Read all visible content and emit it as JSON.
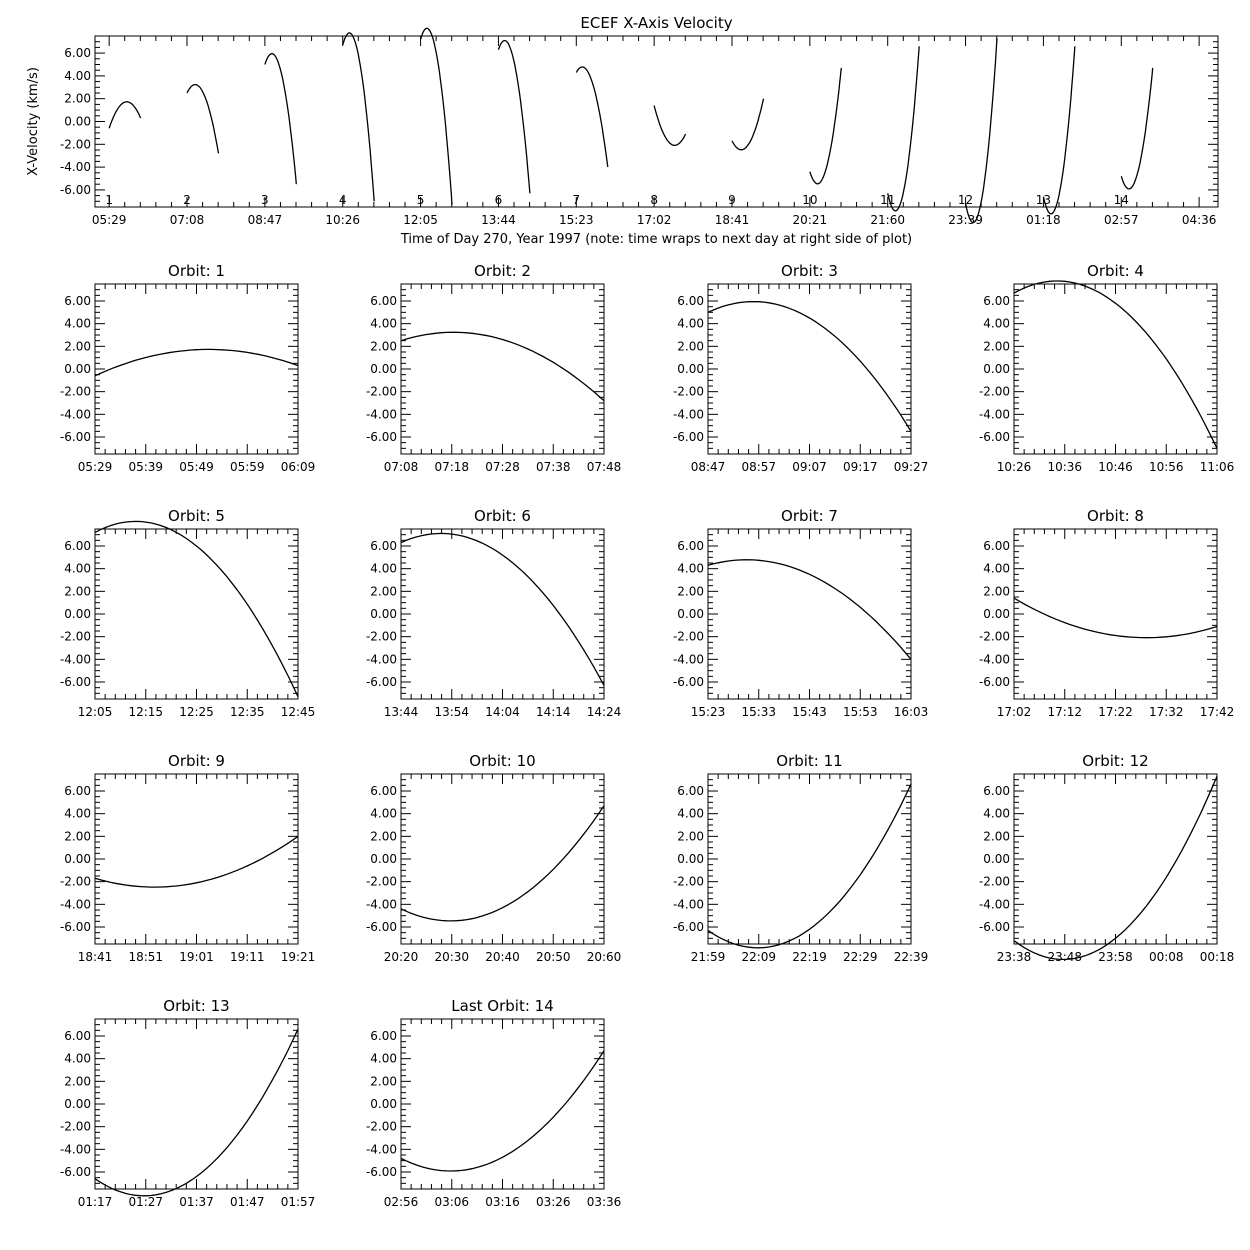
{
  "chart_data": [
    {
      "type": "line",
      "title": "ECEF X-Axis Velocity",
      "xlabel": "Time of Day 270, Year 1997 (note: time wraps to next day at right side of plot)",
      "ylabel": "X-Velocity (km/s)",
      "x_tick_labels": [
        "05:29",
        "07:08",
        "08:47",
        "10:26",
        "12:05",
        "13:44",
        "15:23",
        "17:02",
        "18:41",
        "20:21",
        "21:60",
        "23:39",
        "01:18",
        "02:57",
        "04:36"
      ],
      "y_tick_labels": [
        "6.00",
        "4.00",
        "2.00",
        "0.00",
        "-2.00",
        "-4.00",
        "-6.00"
      ],
      "ylim": [
        -7.5,
        7.5
      ],
      "x_unit": "hours since 05:29",
      "xlim": [
        -0.3,
        23.5
      ],
      "orbit_labels": [
        "1",
        "2",
        "3",
        "4",
        "5",
        "6",
        "7",
        "8",
        "9",
        "10",
        "11",
        "12",
        "13",
        "14"
      ],
      "series": [
        {
          "x": [
            0.0,
            0.667
          ],
          "v": [
            -0.6,
            1.7,
            0.3
          ]
        },
        {
          "x": [
            1.65,
            2.317
          ],
          "v": [
            2.5,
            2.6,
            -2.8
          ]
        },
        {
          "x": [
            3.3,
            3.967
          ],
          "v": [
            5.0,
            4.5,
            -5.5
          ]
        },
        {
          "x": [
            4.95,
            5.617
          ],
          "v": [
            6.7,
            5.8,
            -7.0
          ]
        },
        {
          "x": [
            6.6,
            7.267
          ],
          "v": [
            7.2,
            6.0,
            -7.3
          ]
        },
        {
          "x": [
            8.25,
            8.917
          ],
          "v": [
            6.3,
            5.2,
            -6.3
          ]
        },
        {
          "x": [
            9.9,
            10.567
          ],
          "v": [
            4.3,
            3.5,
            -4.0
          ]
        },
        {
          "x": [
            11.55,
            12.217
          ],
          "v": [
            1.4,
            -1.9,
            -1.1
          ]
        },
        {
          "x": [
            13.2,
            13.867
          ],
          "v": [
            -1.7,
            -2.1,
            2.0
          ]
        },
        {
          "x": [
            14.85,
            15.517
          ],
          "v": [
            -4.4,
            -4.3,
            4.7
          ]
        },
        {
          "x": [
            16.5,
            17.167
          ],
          "v": [
            -6.3,
            -6.2,
            6.6
          ]
        },
        {
          "x": [
            18.15,
            18.817
          ],
          "v": [
            -7.2,
            -7.0,
            7.3
          ]
        },
        {
          "x": [
            19.8,
            20.467
          ],
          "v": [
            -6.6,
            -6.4,
            6.6
          ]
        },
        {
          "x": [
            21.45,
            22.117
          ],
          "v": [
            -4.8,
            -4.7,
            4.7
          ]
        }
      ]
    },
    {
      "type": "line",
      "title": "Orbit: 1",
      "x_tick_labels": [
        "05:29",
        "05:39",
        "05:49",
        "05:59",
        "06:09"
      ],
      "y_tick_labels": [
        "6.00",
        "4.00",
        "2.00",
        "0.00",
        "-2.00",
        "-4.00",
        "-6.00"
      ],
      "ylim": [
        -7.5,
        7.5
      ],
      "x_unit": "minutes since 05:29",
      "xlim": [
        0,
        40
      ],
      "series": [
        {
          "x": [
            0,
            40
          ],
          "v": [
            -0.6,
            1.7,
            0.3
          ]
        }
      ]
    },
    {
      "type": "line",
      "title": "Orbit: 2",
      "x_tick_labels": [
        "07:08",
        "07:18",
        "07:28",
        "07:38",
        "07:48"
      ],
      "y_tick_labels": [
        "6.00",
        "4.00",
        "2.00",
        "0.00",
        "-2.00",
        "-4.00",
        "-6.00"
      ],
      "ylim": [
        -7.5,
        7.5
      ],
      "x_unit": "minutes since 07:08",
      "xlim": [
        0,
        40
      ],
      "series": [
        {
          "x": [
            0,
            40
          ],
          "v": [
            2.5,
            2.6,
            -2.8
          ]
        }
      ]
    },
    {
      "type": "line",
      "title": "Orbit: 3",
      "x_tick_labels": [
        "08:47",
        "08:57",
        "09:07",
        "09:17",
        "09:27"
      ],
      "y_tick_labels": [
        "6.00",
        "4.00",
        "2.00",
        "0.00",
        "-2.00",
        "-4.00",
        "-6.00"
      ],
      "ylim": [
        -7.5,
        7.5
      ],
      "x_unit": "minutes since 08:47",
      "xlim": [
        0,
        40
      ],
      "series": [
        {
          "x": [
            0,
            40
          ],
          "v": [
            5.0,
            4.5,
            -5.5
          ]
        }
      ]
    },
    {
      "type": "line",
      "title": "Orbit: 4",
      "x_tick_labels": [
        "10:26",
        "10:36",
        "10:46",
        "10:56",
        "11:06"
      ],
      "y_tick_labels": [
        "6.00",
        "4.00",
        "2.00",
        "0.00",
        "-2.00",
        "-4.00",
        "-6.00"
      ],
      "ylim": [
        -7.5,
        7.5
      ],
      "x_unit": "minutes since 10:26",
      "xlim": [
        0,
        40
      ],
      "series": [
        {
          "x": [
            0,
            40
          ],
          "v": [
            6.7,
            5.8,
            -7.0
          ]
        }
      ]
    },
    {
      "type": "line",
      "title": "Orbit: 5",
      "x_tick_labels": [
        "12:05",
        "12:15",
        "12:25",
        "12:35",
        "12:45"
      ],
      "y_tick_labels": [
        "6.00",
        "4.00",
        "2.00",
        "0.00",
        "-2.00",
        "-4.00",
        "-6.00"
      ],
      "ylim": [
        -7.5,
        7.5
      ],
      "x_unit": "minutes since 12:05",
      "xlim": [
        0,
        40
      ],
      "series": [
        {
          "x": [
            0,
            40
          ],
          "v": [
            7.2,
            6.0,
            -7.3
          ]
        }
      ]
    },
    {
      "type": "line",
      "title": "Orbit: 6",
      "x_tick_labels": [
        "13:44",
        "13:54",
        "14:04",
        "14:14",
        "14:24"
      ],
      "y_tick_labels": [
        "6.00",
        "4.00",
        "2.00",
        "0.00",
        "-2.00",
        "-4.00",
        "-6.00"
      ],
      "ylim": [
        -7.5,
        7.5
      ],
      "x_unit": "minutes since 13:44",
      "xlim": [
        0,
        40
      ],
      "series": [
        {
          "x": [
            0,
            40
          ],
          "v": [
            6.3,
            5.2,
            -6.3
          ]
        }
      ]
    },
    {
      "type": "line",
      "title": "Orbit: 7",
      "x_tick_labels": [
        "15:23",
        "15:33",
        "15:43",
        "15:53",
        "16:03"
      ],
      "y_tick_labels": [
        "6.00",
        "4.00",
        "2.00",
        "0.00",
        "-2.00",
        "-4.00",
        "-6.00"
      ],
      "ylim": [
        -7.5,
        7.5
      ],
      "x_unit": "minutes since 15:23",
      "xlim": [
        0,
        40
      ],
      "series": [
        {
          "x": [
            0,
            40
          ],
          "v": [
            4.3,
            3.5,
            -4.0
          ]
        }
      ]
    },
    {
      "type": "line",
      "title": "Orbit: 8",
      "x_tick_labels": [
        "17:02",
        "17:12",
        "17:22",
        "17:32",
        "17:42"
      ],
      "y_tick_labels": [
        "6.00",
        "4.00",
        "2.00",
        "0.00",
        "-2.00",
        "-4.00",
        "-6.00"
      ],
      "ylim": [
        -7.5,
        7.5
      ],
      "x_unit": "minutes since 17:02",
      "xlim": [
        0,
        40
      ],
      "series": [
        {
          "x": [
            0,
            40
          ],
          "v": [
            1.4,
            -1.9,
            -1.1
          ]
        }
      ]
    },
    {
      "type": "line",
      "title": "Orbit: 9",
      "x_tick_labels": [
        "18:41",
        "18:51",
        "19:01",
        "19:11",
        "19:21"
      ],
      "y_tick_labels": [
        "6.00",
        "4.00",
        "2.00",
        "0.00",
        "-2.00",
        "-4.00",
        "-6.00"
      ],
      "ylim": [
        -7.5,
        7.5
      ],
      "x_unit": "minutes since 18:41",
      "xlim": [
        0,
        40
      ],
      "series": [
        {
          "x": [
            0,
            40
          ],
          "v": [
            -1.7,
            -2.1,
            2.0
          ]
        }
      ]
    },
    {
      "type": "line",
      "title": "Orbit: 10",
      "x_tick_labels": [
        "20:20",
        "20:30",
        "20:40",
        "20:50",
        "20:60"
      ],
      "y_tick_labels": [
        "6.00",
        "4.00",
        "2.00",
        "0.00",
        "-2.00",
        "-4.00",
        "-6.00"
      ],
      "ylim": [
        -7.5,
        7.5
      ],
      "x_unit": "minutes since 20:20",
      "xlim": [
        0,
        40
      ],
      "series": [
        {
          "x": [
            0,
            40
          ],
          "v": [
            -4.4,
            -4.3,
            4.7
          ]
        }
      ]
    },
    {
      "type": "line",
      "title": "Orbit: 11",
      "x_tick_labels": [
        "21:59",
        "22:09",
        "22:19",
        "22:29",
        "22:39"
      ],
      "y_tick_labels": [
        "6.00",
        "4.00",
        "2.00",
        "0.00",
        "-2.00",
        "-4.00",
        "-6.00"
      ],
      "ylim": [
        -7.5,
        7.5
      ],
      "x_unit": "minutes since 21:59",
      "xlim": [
        0,
        40
      ],
      "series": [
        {
          "x": [
            0,
            40
          ],
          "v": [
            -6.3,
            -6.2,
            6.6
          ]
        }
      ]
    },
    {
      "type": "line",
      "title": "Orbit: 12",
      "x_tick_labels": [
        "23:38",
        "23:48",
        "23:58",
        "00:08",
        "00:18"
      ],
      "y_tick_labels": [
        "6.00",
        "4.00",
        "2.00",
        "0.00",
        "-2.00",
        "-4.00",
        "-6.00"
      ],
      "ylim": [
        -7.5,
        7.5
      ],
      "x_unit": "minutes since 23:38",
      "xlim": [
        0,
        40
      ],
      "series": [
        {
          "x": [
            0,
            40
          ],
          "v": [
            -7.2,
            -7.0,
            7.3
          ]
        }
      ]
    },
    {
      "type": "line",
      "title": "Orbit: 13",
      "x_tick_labels": [
        "01:17",
        "01:27",
        "01:37",
        "01:47",
        "01:57"
      ],
      "y_tick_labels": [
        "6.00",
        "4.00",
        "2.00",
        "0.00",
        "-2.00",
        "-4.00",
        "-6.00"
      ],
      "ylim": [
        -7.5,
        7.5
      ],
      "x_unit": "minutes since 01:17",
      "xlim": [
        0,
        40
      ],
      "series": [
        {
          "x": [
            0,
            40
          ],
          "v": [
            -6.6,
            -6.4,
            6.6
          ]
        }
      ]
    },
    {
      "type": "line",
      "title": "Last Orbit: 14",
      "x_tick_labels": [
        "02:56",
        "03:06",
        "03:16",
        "03:26",
        "03:36"
      ],
      "y_tick_labels": [
        "6.00",
        "4.00",
        "2.00",
        "0.00",
        "-2.00",
        "-4.00",
        "-6.00"
      ],
      "ylim": [
        -7.5,
        7.5
      ],
      "x_unit": "minutes since 02:56",
      "xlim": [
        0,
        40
      ],
      "series": [
        {
          "x": [
            0,
            40
          ],
          "v": [
            -4.8,
            -4.7,
            4.7
          ]
        }
      ]
    }
  ]
}
